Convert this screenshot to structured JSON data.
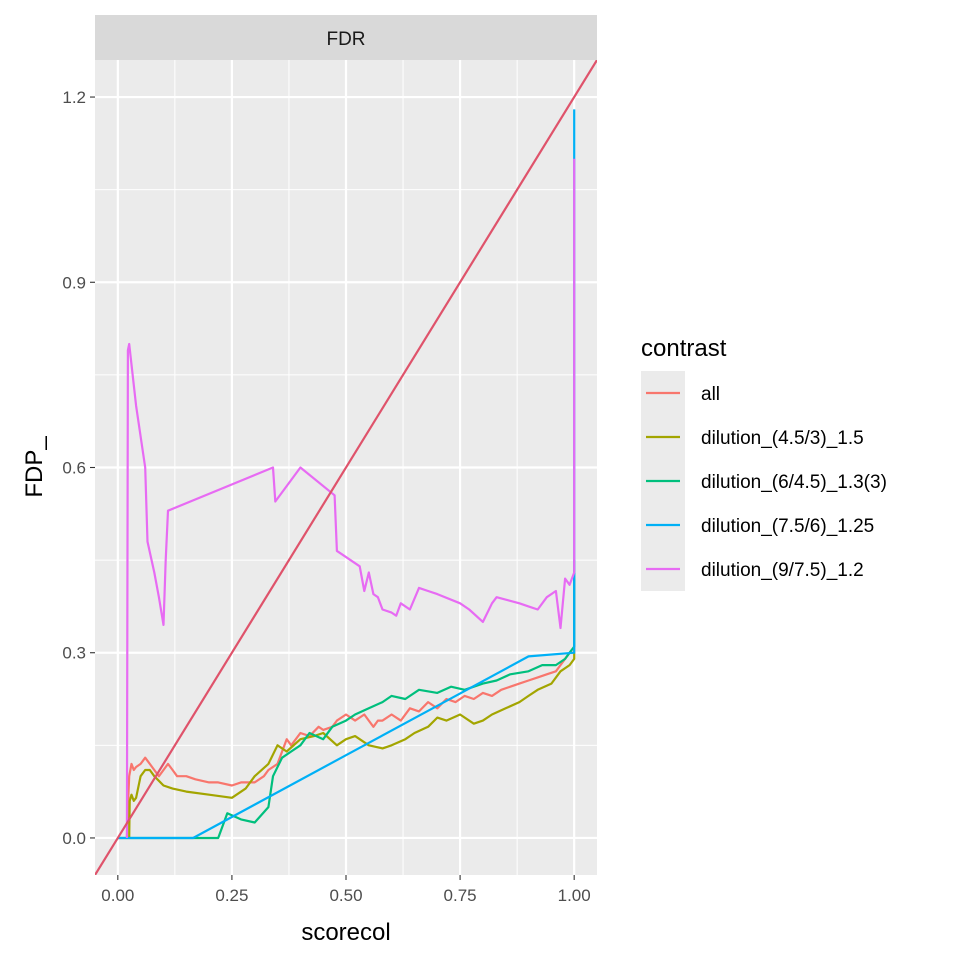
{
  "chart_data": {
    "type": "line",
    "facet_label": "FDR",
    "xlabel": "scorecol",
    "ylabel": "FDP_",
    "xlim": [
      -0.05,
      1.05
    ],
    "ylim": [
      -0.06,
      1.26
    ],
    "x_ticks": [
      0,
      0.25,
      0.5,
      0.75,
      1
    ],
    "x_tick_labels": [
      "0.00",
      "0.25",
      "0.50",
      "0.75",
      "1.00"
    ],
    "y_ticks": [
      0,
      0.3,
      0.6,
      0.9,
      1.2
    ],
    "y_tick_labels": [
      "0.0",
      "0.3",
      "0.6",
      "0.9",
      "1.2"
    ],
    "grid": true,
    "legend": {
      "title": "contrast",
      "position": "right"
    },
    "reference_line": {
      "slope": 1.2,
      "intercept": 0,
      "color": "#df536b"
    },
    "series": [
      {
        "name": "all",
        "color": "#f8766d",
        "x": [
          0.02,
          0.022,
          0.025,
          0.03,
          0.035,
          0.04,
          0.05,
          0.06,
          0.07,
          0.08,
          0.09,
          0.1,
          0.11,
          0.12,
          0.13,
          0.15,
          0.17,
          0.2,
          0.22,
          0.25,
          0.27,
          0.3,
          0.32,
          0.33,
          0.35,
          0.36,
          0.37,
          0.38,
          0.39,
          0.4,
          0.42,
          0.44,
          0.45,
          0.47,
          0.48,
          0.5,
          0.52,
          0.54,
          0.55,
          0.56,
          0.57,
          0.58,
          0.6,
          0.62,
          0.64,
          0.66,
          0.68,
          0.7,
          0.72,
          0.74,
          0.76,
          0.78,
          0.8,
          0.82,
          0.84,
          0.86,
          0.88,
          0.9,
          0.92,
          0.94,
          0.96,
          0.97,
          0.98,
          0.99,
          1.0,
          1.0
        ],
        "y": [
          0.0,
          0.05,
          0.1,
          0.12,
          0.11,
          0.115,
          0.12,
          0.13,
          0.12,
          0.11,
          0.1,
          0.11,
          0.12,
          0.11,
          0.1,
          0.1,
          0.095,
          0.09,
          0.09,
          0.085,
          0.09,
          0.09,
          0.1,
          0.11,
          0.12,
          0.14,
          0.16,
          0.15,
          0.16,
          0.17,
          0.165,
          0.18,
          0.175,
          0.18,
          0.19,
          0.2,
          0.19,
          0.2,
          0.19,
          0.18,
          0.19,
          0.19,
          0.2,
          0.19,
          0.21,
          0.205,
          0.22,
          0.21,
          0.225,
          0.22,
          0.23,
          0.225,
          0.235,
          0.23,
          0.24,
          0.245,
          0.25,
          0.255,
          0.26,
          0.265,
          0.27,
          0.28,
          0.29,
          0.3,
          0.3,
          0.42
        ]
      },
      {
        "name": "dilution_(4.5/3)_1.5",
        "color": "#a3a500",
        "x": [
          0.025,
          0.026,
          0.03,
          0.035,
          0.04,
          0.05,
          0.06,
          0.07,
          0.08,
          0.1,
          0.12,
          0.15,
          0.2,
          0.25,
          0.28,
          0.3,
          0.33,
          0.35,
          0.37,
          0.4,
          0.43,
          0.45,
          0.48,
          0.5,
          0.52,
          0.55,
          0.58,
          0.6,
          0.63,
          0.65,
          0.68,
          0.7,
          0.72,
          0.75,
          0.78,
          0.8,
          0.82,
          0.85,
          0.88,
          0.9,
          0.92,
          0.95,
          0.97,
          0.99,
          1.0,
          1.0
        ],
        "y": [
          0.0,
          0.06,
          0.07,
          0.06,
          0.065,
          0.1,
          0.11,
          0.11,
          0.1,
          0.085,
          0.08,
          0.075,
          0.07,
          0.065,
          0.08,
          0.1,
          0.12,
          0.15,
          0.14,
          0.16,
          0.165,
          0.17,
          0.15,
          0.16,
          0.165,
          0.15,
          0.145,
          0.15,
          0.16,
          0.17,
          0.18,
          0.195,
          0.19,
          0.2,
          0.185,
          0.19,
          0.2,
          0.21,
          0.22,
          0.23,
          0.24,
          0.25,
          0.27,
          0.28,
          0.29,
          0.3
        ]
      },
      {
        "name": "dilution_(6/4.5)_1.3(3)",
        "color": "#00bf7d",
        "x": [
          0.0,
          0.1,
          0.22,
          0.24,
          0.27,
          0.3,
          0.33,
          0.34,
          0.36,
          0.38,
          0.4,
          0.42,
          0.45,
          0.47,
          0.5,
          0.52,
          0.55,
          0.58,
          0.6,
          0.63,
          0.66,
          0.7,
          0.73,
          0.76,
          0.8,
          0.83,
          0.86,
          0.9,
          0.93,
          0.96,
          0.98,
          0.99,
          1.0,
          1.0
        ],
        "y": [
          0.0,
          0.0,
          0.0,
          0.04,
          0.03,
          0.025,
          0.05,
          0.1,
          0.13,
          0.14,
          0.15,
          0.17,
          0.16,
          0.18,
          0.19,
          0.2,
          0.21,
          0.22,
          0.23,
          0.225,
          0.24,
          0.235,
          0.245,
          0.24,
          0.25,
          0.255,
          0.265,
          0.27,
          0.28,
          0.28,
          0.29,
          0.3,
          0.31,
          0.45
        ]
      },
      {
        "name": "dilution_(7.5/6)_1.25",
        "color": "#00b0f6",
        "x": [
          0.0,
          0.165,
          0.3,
          0.5,
          0.7,
          0.9,
          1.0,
          1.0,
          1.0
        ],
        "y": [
          0.0,
          0.0,
          0.054,
          0.134,
          0.214,
          0.294,
          0.3,
          0.42,
          1.18
        ]
      },
      {
        "name": "dilution_(9/7.5)_1.2",
        "color": "#e76bf3",
        "x": [
          0.02,
          0.022,
          0.025,
          0.04,
          0.06,
          0.065,
          0.08,
          0.09,
          0.1,
          0.105,
          0.11,
          0.34,
          0.345,
          0.4,
          0.475,
          0.48,
          0.49,
          0.53,
          0.54,
          0.55,
          0.56,
          0.57,
          0.58,
          0.6,
          0.61,
          0.62,
          0.64,
          0.66,
          0.68,
          0.7,
          0.75,
          0.77,
          0.8,
          0.82,
          0.83,
          0.88,
          0.9,
          0.92,
          0.94,
          0.96,
          0.97,
          0.98,
          0.99,
          1.0,
          1.0
        ],
        "y": [
          0.0,
          0.79,
          0.8,
          0.7,
          0.6,
          0.48,
          0.43,
          0.39,
          0.345,
          0.45,
          0.53,
          0.6,
          0.545,
          0.6,
          0.555,
          0.465,
          0.46,
          0.44,
          0.4,
          0.43,
          0.395,
          0.39,
          0.37,
          0.365,
          0.36,
          0.38,
          0.37,
          0.405,
          0.4,
          0.395,
          0.38,
          0.37,
          0.35,
          0.38,
          0.39,
          0.38,
          0.375,
          0.37,
          0.39,
          0.4,
          0.34,
          0.42,
          0.41,
          0.43,
          1.1
        ]
      }
    ]
  }
}
